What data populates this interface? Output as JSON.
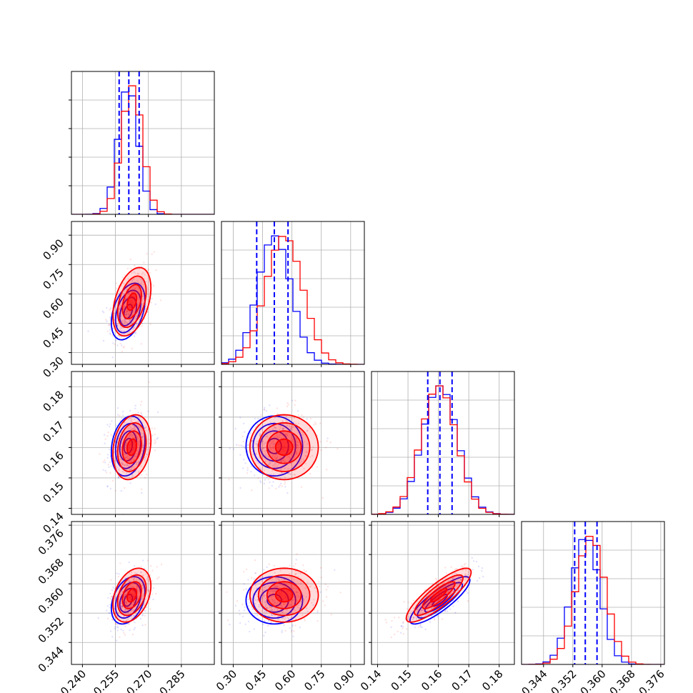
{
  "chart_data": {
    "type": "corner",
    "series": [
      {
        "name": "",
        "color": "#0000ff",
        "mean": [
          0.2608,
          0.51,
          0.1605,
          0.3555
        ],
        "sd": [
          0.0045,
          0.085,
          0.0058,
          0.0038
        ],
        "quantiles": [
          [
            0.2567,
            0.2611,
            0.2658
          ],
          [
            0.42,
            0.51,
            0.58
          ],
          [
            0.1565,
            0.1605,
            0.1645
          ],
          [
            0.3525,
            0.3554,
            0.3586
          ]
        ]
      },
      {
        "name": "",
        "color": "#ff0000",
        "mean": [
          0.2625,
          0.56,
          0.1601,
          0.3569
        ],
        "sd": [
          0.0047,
          0.095,
          0.0058,
          0.004
        ]
      }
    ],
    "correlation_pairs": [
      {
        "x": 0,
        "y": 1,
        "rho": 0.4
      },
      {
        "x": 0,
        "y": 2,
        "rho": 0.2
      },
      {
        "x": 0,
        "y": 3,
        "rho": 0.35
      },
      {
        "x": 1,
        "y": 2,
        "rho": 0.0
      },
      {
        "x": 1,
        "y": 3,
        "rho": 0.0
      },
      {
        "x": 2,
        "y": 3,
        "rho": 0.85
      }
    ],
    "axes": [
      {
        "range": [
          0.235,
          0.3
        ],
        "ticks": [
          "0.240",
          "0.255",
          "0.270",
          "0.285"
        ],
        "tick_values": [
          0.24,
          0.255,
          0.27,
          0.285
        ]
      },
      {
        "range": [
          0.24,
          0.97
        ],
        "ticks": [
          "0.30",
          "0.45",
          "0.60",
          "0.75",
          "0.90"
        ],
        "tick_values": [
          0.3,
          0.45,
          0.6,
          0.75,
          0.9
        ]
      },
      {
        "range": [
          0.138,
          0.185
        ],
        "ticks": [
          "0.14",
          "0.15",
          "0.16",
          "0.17",
          "0.18"
        ],
        "tick_values": [
          0.14,
          0.15,
          0.16,
          0.17,
          0.18
        ]
      },
      {
        "range": [
          0.338,
          0.377
        ],
        "ticks": [
          "0.344",
          "0.352",
          "0.360",
          "0.368",
          "0.376"
        ],
        "tick_values": [
          0.344,
          0.352,
          0.36,
          0.368,
          0.376
        ]
      }
    ],
    "quantile_line_style": "dashed",
    "grid": true,
    "xlabel": "",
    "ylabel": ""
  }
}
